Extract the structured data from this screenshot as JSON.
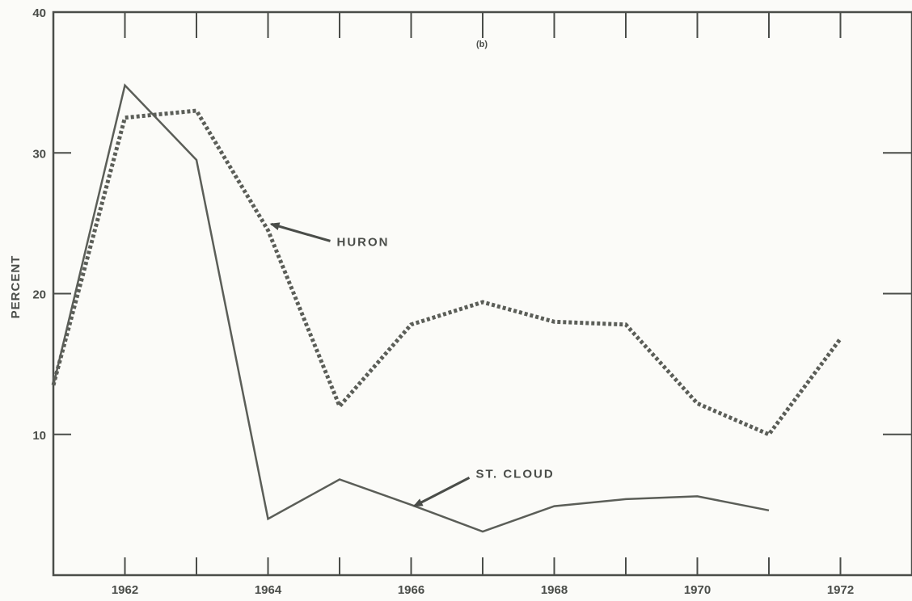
{
  "chart_data": {
    "type": "line",
    "panel_label": "(b)",
    "ylabel": "PERCENT",
    "xlabel": "",
    "xlim": [
      1961,
      1973
    ],
    "ylim": [
      0,
      40
    ],
    "x_tick_labels": [
      "1962",
      "1964",
      "1966",
      "1968",
      "1970",
      "1972"
    ],
    "y_tick_labels": [
      "10",
      "20",
      "30",
      "40"
    ],
    "grid": false,
    "series": [
      {
        "name": "HURON",
        "style": "dotted",
        "color": "#5b5e58",
        "x": [
          1961,
          1962,
          1963,
          1964,
          1965,
          1966,
          1967,
          1968,
          1969,
          1970,
          1971,
          1972
        ],
        "y": [
          13.5,
          32.5,
          33,
          24.5,
          12,
          17.8,
          19.4,
          18,
          17.8,
          12.2,
          10,
          16.8
        ]
      },
      {
        "name": "ST. CLOUD",
        "style": "solid",
        "color": "#5b5e58",
        "x": [
          1961,
          1962,
          1963,
          1964,
          1965,
          1966,
          1967,
          1968,
          1969,
          1970,
          1971
        ],
        "y": [
          13.5,
          34.8,
          29.5,
          4,
          6.8,
          5,
          3.1,
          4.9,
          5.4,
          5.6,
          4.6
        ]
      }
    ],
    "annotations": [
      {
        "text": "HURON",
        "series": "HURON",
        "x": 1964,
        "y": 25
      },
      {
        "text": "ST. CLOUD",
        "series": "ST. CLOUD",
        "x": 1966,
        "y": 4.8
      }
    ]
  }
}
